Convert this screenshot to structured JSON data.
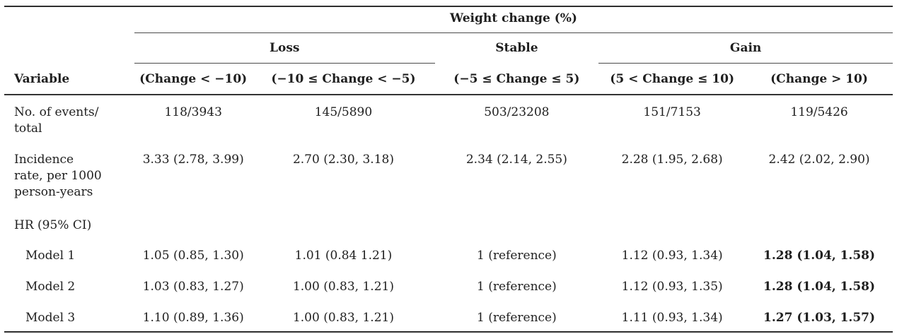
{
  "table": {
    "title": "Weight change (%)",
    "variable_header": "Variable",
    "groups": [
      {
        "label": "Loss"
      },
      {
        "label": "Stable"
      },
      {
        "label": "Gain"
      }
    ],
    "columns": [
      "(Change < −10)",
      "(−10 ≤ Change < −5)",
      "(−5 ≤ Change ≤ 5)",
      "(5 < Change ≤ 10)",
      "(Change > 10)"
    ],
    "rows": [
      {
        "label": "No. of events/\ntotal",
        "values": [
          "118/3943",
          "145/5890",
          "503/23208",
          "151/7153",
          "119/5426"
        ]
      },
      {
        "label": "Incidence\nrate, per 1000\nperson-years",
        "values": [
          "3.33 (2.78, 3.99)",
          "2.70 (2.30, 3.18)",
          "2.34 (2.14, 2.55)",
          "2.28 (1.95, 2.68)",
          "2.42 (2.02, 2.90)"
        ]
      },
      {
        "label": "HR (95% CI)",
        "values": [
          "",
          "",
          "",
          "",
          ""
        ]
      },
      {
        "label": "Model 1",
        "values": [
          "1.05 (0.85, 1.30)",
          "1.01 (0.84 1.21)",
          "1 (reference)",
          "1.12 (0.93, 1.34)",
          "1.28 (1.04, 1.58)"
        ]
      },
      {
        "label": "Model 2",
        "values": [
          "1.03 (0.83, 1.27)",
          "1.00 (0.83, 1.21)",
          "1 (reference)",
          "1.12 (0.93, 1.35)",
          "1.28 (1.04, 1.58)"
        ]
      },
      {
        "label": "Model 3",
        "values": [
          "1.10 (0.89, 1.36)",
          "1.00 (0.83, 1.21)",
          "1 (reference)",
          "1.11 (0.93, 1.34)",
          "1.27 (1.03, 1.57)"
        ]
      }
    ],
    "colors": {
      "text": "#1f1f1f",
      "rule_heavy": "#2e2e2e",
      "rule_light": "#4a4a4a"
    }
  }
}
